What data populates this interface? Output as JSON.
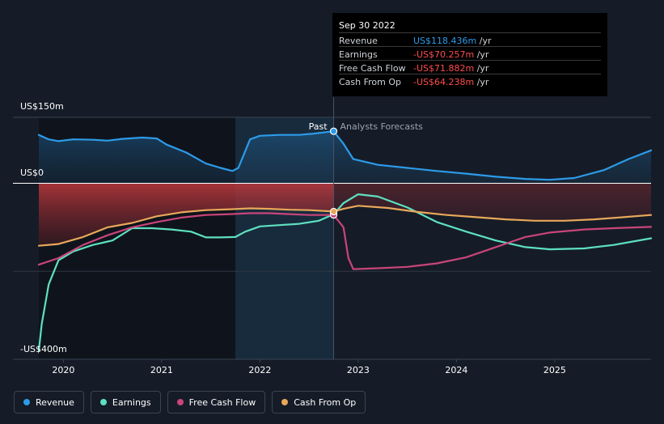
{
  "tooltip": {
    "date": "Sep 30 2022",
    "rows": [
      {
        "name": "Revenue",
        "value": "US$118.436m",
        "unit": "/yr",
        "color": "#2d9be8"
      },
      {
        "name": "Earnings",
        "value": "-US$70.257m",
        "unit": "/yr",
        "color": "#ff4d4d"
      },
      {
        "name": "Free Cash Flow",
        "value": "-US$71.882m",
        "unit": "/yr",
        "color": "#ff4d4d"
      },
      {
        "name": "Cash From Op",
        "value": "-US$64.238m",
        "unit": "/yr",
        "color": "#ff4d4d"
      }
    ]
  },
  "labels": {
    "past": "Past",
    "forecast": "Analysts Forecasts"
  },
  "chart_data": {
    "type": "line",
    "ylabels": [
      "US$150m",
      "US$0",
      "-US$400m"
    ],
    "ylim": [
      -400,
      150
    ],
    "x_ticks": [
      2020,
      2021,
      2022,
      2023,
      2024,
      2025
    ],
    "x_tick_labels": [
      "2020",
      "2021",
      "2022",
      "2023",
      "2024",
      "2025"
    ],
    "xlim": [
      2019.75,
      2025.98
    ],
    "divider_x": 2022.75,
    "shade_start_x": 2021.75,
    "series": [
      {
        "name": "Revenue",
        "color": "#2d9be8",
        "points": [
          [
            2019.75,
            110
          ],
          [
            2019.85,
            100
          ],
          [
            2019.95,
            96
          ],
          [
            2020.1,
            100
          ],
          [
            2020.3,
            99
          ],
          [
            2020.45,
            97
          ],
          [
            2020.6,
            101
          ],
          [
            2020.8,
            104
          ],
          [
            2020.95,
            102
          ],
          [
            2021.05,
            88
          ],
          [
            2021.25,
            70
          ],
          [
            2021.45,
            45
          ],
          [
            2021.6,
            35
          ],
          [
            2021.72,
            28
          ],
          [
            2021.78,
            35
          ],
          [
            2021.9,
            100
          ],
          [
            2022.0,
            108
          ],
          [
            2022.2,
            110
          ],
          [
            2022.4,
            110
          ],
          [
            2022.55,
            113
          ],
          [
            2022.75,
            118.4
          ],
          [
            2022.85,
            90
          ],
          [
            2022.95,
            55
          ],
          [
            2023.2,
            42
          ],
          [
            2023.5,
            35
          ],
          [
            2023.8,
            28
          ],
          [
            2024.1,
            22
          ],
          [
            2024.4,
            15
          ],
          [
            2024.7,
            10
          ],
          [
            2024.95,
            8
          ],
          [
            2025.2,
            12
          ],
          [
            2025.5,
            30
          ],
          [
            2025.75,
            55
          ],
          [
            2025.98,
            75
          ]
        ]
      },
      {
        "name": "Earnings",
        "color": "#5ee0c0",
        "points": [
          [
            2019.75,
            -380
          ],
          [
            2019.78,
            -320
          ],
          [
            2019.85,
            -230
          ],
          [
            2019.95,
            -175
          ],
          [
            2020.1,
            -155
          ],
          [
            2020.3,
            -140
          ],
          [
            2020.5,
            -130
          ],
          [
            2020.7,
            -102
          ],
          [
            2020.9,
            -102
          ],
          [
            2021.1,
            -105
          ],
          [
            2021.3,
            -110
          ],
          [
            2021.45,
            -123
          ],
          [
            2021.6,
            -123
          ],
          [
            2021.75,
            -122
          ],
          [
            2021.85,
            -110
          ],
          [
            2022.0,
            -98
          ],
          [
            2022.2,
            -95
          ],
          [
            2022.4,
            -92
          ],
          [
            2022.6,
            -85
          ],
          [
            2022.75,
            -70.3
          ],
          [
            2022.85,
            -45
          ],
          [
            2023.0,
            -25
          ],
          [
            2023.2,
            -30
          ],
          [
            2023.5,
            -55
          ],
          [
            2023.8,
            -88
          ],
          [
            2024.1,
            -110
          ],
          [
            2024.4,
            -130
          ],
          [
            2024.7,
            -145
          ],
          [
            2024.95,
            -150
          ],
          [
            2025.3,
            -148
          ],
          [
            2025.6,
            -140
          ],
          [
            2025.98,
            -125
          ]
        ]
      },
      {
        "name": "Free Cash Flow",
        "color": "#c9457a",
        "points": [
          [
            2019.75,
            -185
          ],
          [
            2019.95,
            -170
          ],
          [
            2020.2,
            -140
          ],
          [
            2020.45,
            -118
          ],
          [
            2020.7,
            -100
          ],
          [
            2020.95,
            -88
          ],
          [
            2021.2,
            -78
          ],
          [
            2021.45,
            -72
          ],
          [
            2021.7,
            -70
          ],
          [
            2021.9,
            -68
          ],
          [
            2022.1,
            -68
          ],
          [
            2022.3,
            -70
          ],
          [
            2022.5,
            -72
          ],
          [
            2022.75,
            -71.9
          ],
          [
            2022.85,
            -100
          ],
          [
            2022.9,
            -170
          ],
          [
            2022.95,
            -195
          ],
          [
            2023.2,
            -193
          ],
          [
            2023.5,
            -190
          ],
          [
            2023.8,
            -182
          ],
          [
            2024.1,
            -168
          ],
          [
            2024.4,
            -145
          ],
          [
            2024.7,
            -122
          ],
          [
            2024.95,
            -112
          ],
          [
            2025.3,
            -105
          ],
          [
            2025.6,
            -102
          ],
          [
            2025.98,
            -99
          ]
        ]
      },
      {
        "name": "Cash From Op",
        "color": "#e8a85a",
        "points": [
          [
            2019.75,
            -142
          ],
          [
            2019.95,
            -138
          ],
          [
            2020.2,
            -122
          ],
          [
            2020.45,
            -100
          ],
          [
            2020.7,
            -90
          ],
          [
            2020.95,
            -75
          ],
          [
            2021.2,
            -66
          ],
          [
            2021.45,
            -61
          ],
          [
            2021.7,
            -59
          ],
          [
            2021.9,
            -57
          ],
          [
            2022.1,
            -58
          ],
          [
            2022.3,
            -60
          ],
          [
            2022.5,
            -61
          ],
          [
            2022.75,
            -64.2
          ],
          [
            2022.85,
            -58
          ],
          [
            2023.0,
            -51
          ],
          [
            2023.3,
            -56
          ],
          [
            2023.6,
            -65
          ],
          [
            2023.9,
            -72
          ],
          [
            2024.2,
            -77
          ],
          [
            2024.5,
            -82
          ],
          [
            2024.8,
            -85
          ],
          [
            2025.1,
            -85
          ],
          [
            2025.4,
            -82
          ],
          [
            2025.7,
            -77
          ],
          [
            2025.98,
            -72
          ]
        ]
      }
    ]
  }
}
